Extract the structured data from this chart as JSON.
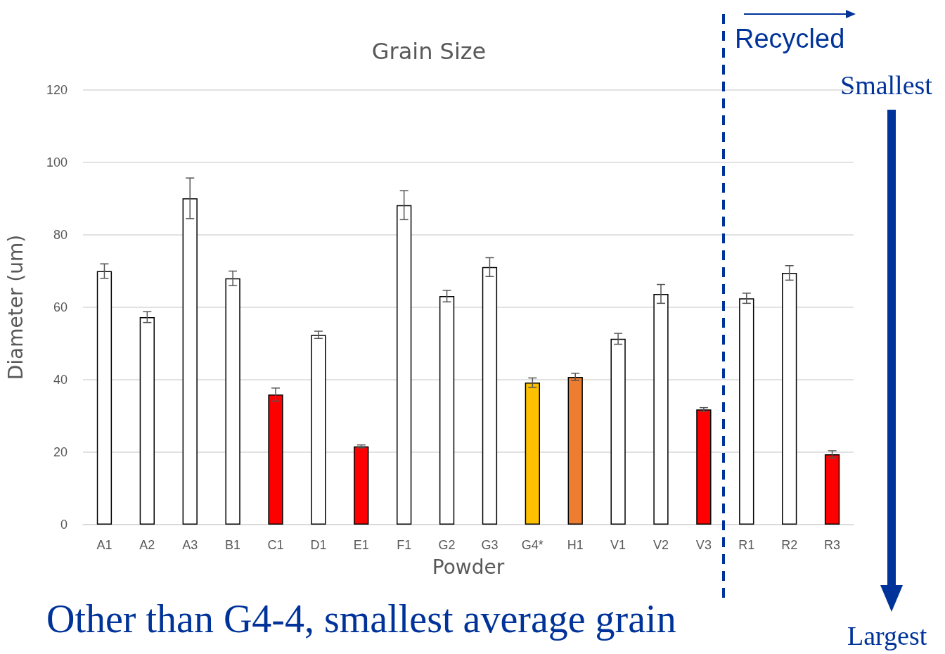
{
  "chart_data": {
    "type": "bar",
    "title": "Grain Size",
    "xlabel": "Powder",
    "ylabel": "Diameter (um)",
    "categories": [
      "A1",
      "A2",
      "A3",
      "B1",
      "C1",
      "D1",
      "E1",
      "F1",
      "G2",
      "G3",
      "G4*",
      "H1",
      "V1",
      "V2",
      "V3",
      "R1",
      "R2",
      "R3"
    ],
    "values": [
      70,
      57.3,
      90.1,
      68,
      35.9,
      52.4,
      21.6,
      88.2,
      63.1,
      71.1,
      39.2,
      40.8,
      51.3,
      63.7,
      31.8,
      62.5,
      69.5,
      19.4
    ],
    "errors": [
      2,
      1.5,
      5.6,
      2,
      1.8,
      1,
      0.4,
      4,
      1.6,
      2.6,
      1.3,
      1,
      1.5,
      2.6,
      0.5,
      1.4,
      2,
      1
    ],
    "colors": [
      "#ffffff",
      "#ffffff",
      "#ffffff",
      "#ffffff",
      "#ff0000",
      "#ffffff",
      "#ff0000",
      "#ffffff",
      "#ffffff",
      "#ffffff",
      "#ffc000",
      "#ed7d31",
      "#ffffff",
      "#ffffff",
      "#ff0000",
      "#ffffff",
      "#ffffff",
      "#ff0000"
    ],
    "ylim": [
      0,
      120
    ],
    "yticks": [
      0,
      20,
      40,
      60,
      80,
      100,
      120
    ],
    "grid": "y",
    "annotations": [
      "Recycled",
      "Smallest",
      "Largest",
      "Other than G4-4, smallest average grain"
    ]
  }
}
